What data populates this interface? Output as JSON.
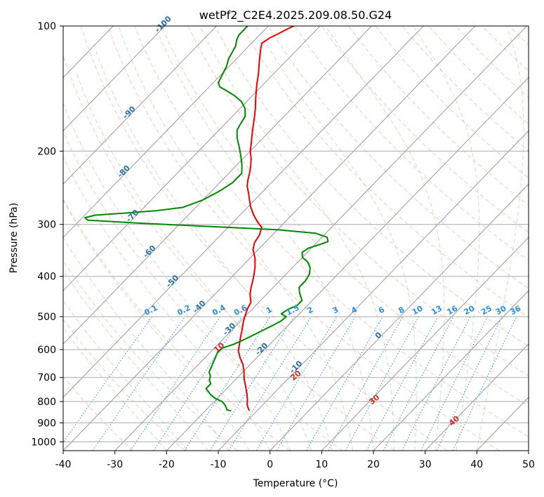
{
  "chart_data": {
    "type": "line",
    "title": "wetPf2_C2E4.2025.209.08.50.G24",
    "xlabel": "Temperature (°C)",
    "ylabel": "Pressure (hPa)",
    "xlim": [
      -40,
      50
    ],
    "ylim": [
      1050,
      100
    ],
    "y_scale": "log",
    "x_ticks": [
      "-40",
      "-30",
      "-20",
      "-10",
      "0",
      "10",
      "20",
      "30",
      "40",
      "50"
    ],
    "y_ticks": [
      "100",
      "200",
      "300",
      "400",
      "500",
      "600",
      "700",
      "800",
      "900",
      "1000"
    ],
    "grid": true,
    "series": [
      {
        "name": "",
        "color": "#ee0000",
        "points": [
          [
            -11.5,
            842
          ],
          [
            -13.0,
            815
          ],
          [
            -14.0,
            790
          ],
          [
            -15.2,
            765
          ],
          [
            -16.8,
            735
          ],
          [
            -18.5,
            705
          ],
          [
            -20.0,
            675
          ],
          [
            -21.5,
            650
          ],
          [
            -23.2,
            628
          ],
          [
            -24.8,
            605
          ],
          [
            -26.0,
            580
          ],
          [
            -27.0,
            560
          ],
          [
            -28.2,
            535
          ],
          [
            -29.3,
            515
          ],
          [
            -30.0,
            500
          ],
          [
            -31.0,
            478
          ],
          [
            -31.5,
            462
          ],
          [
            -32.5,
            450
          ],
          [
            -33.3,
            440
          ],
          [
            -34.3,
            425
          ],
          [
            -35.2,
            410
          ],
          [
            -36.2,
            395
          ],
          [
            -37.5,
            378
          ],
          [
            -39.2,
            360
          ],
          [
            -41.0,
            345
          ],
          [
            -42.0,
            332
          ],
          [
            -42.5,
            318
          ],
          [
            -43.5,
            305
          ],
          [
            -45.5,
            295
          ],
          [
            -47.5,
            284
          ],
          [
            -49.5,
            272
          ],
          [
            -51.0,
            262
          ],
          [
            -52.5,
            252
          ],
          [
            -54.0,
            243
          ],
          [
            -55.0,
            235
          ],
          [
            -56.0,
            226
          ],
          [
            -57.0,
            218
          ],
          [
            -58.5,
            208
          ],
          [
            -60.0,
            200
          ],
          [
            -61.2,
            192
          ],
          [
            -62.5,
            184
          ],
          [
            -64.0,
            175
          ],
          [
            -65.5,
            166
          ],
          [
            -67.0,
            158
          ],
          [
            -68.7,
            150
          ],
          [
            -70.2,
            143
          ],
          [
            -71.5,
            137
          ],
          [
            -73.0,
            130
          ],
          [
            -74.5,
            124
          ],
          [
            -76.0,
            118
          ],
          [
            -77.3,
            113
          ],
          [
            -78.0,
            110
          ],
          [
            -77.5,
            107
          ],
          [
            -76.5,
            104
          ],
          [
            -75.5,
            101
          ],
          [
            -75.0,
            100
          ]
        ]
      },
      {
        "name": "",
        "color": "#008800",
        "points": [
          [
            -15.0,
            842
          ],
          [
            -16.0,
            838
          ],
          [
            -16.5,
            828
          ],
          [
            -17.3,
            815
          ],
          [
            -18.5,
            800
          ],
          [
            -20.5,
            785
          ],
          [
            -22.0,
            770
          ],
          [
            -23.0,
            757
          ],
          [
            -24.0,
            745
          ],
          [
            -24.0,
            725
          ],
          [
            -25.0,
            710
          ],
          [
            -25.5,
            695
          ],
          [
            -26.5,
            680
          ],
          [
            -27.0,
            662
          ],
          [
            -27.5,
            645
          ],
          [
            -28.0,
            628
          ],
          [
            -28.5,
            612
          ],
          [
            -28.5,
            595
          ],
          [
            -27.0,
            583
          ],
          [
            -26.0,
            570
          ],
          [
            -25.0,
            555
          ],
          [
            -24.0,
            540
          ],
          [
            -23.0,
            525
          ],
          [
            -22.2,
            512
          ],
          [
            -22.0,
            500
          ],
          [
            -23.5,
            492
          ],
          [
            -23.0,
            480
          ],
          [
            -22.0,
            470
          ],
          [
            -22.0,
            457
          ],
          [
            -23.0,
            447
          ],
          [
            -24.0,
            437
          ],
          [
            -25.0,
            425
          ],
          [
            -25.0,
            410
          ],
          [
            -25.5,
            395
          ],
          [
            -26.5,
            382
          ],
          [
            -28.0,
            370
          ],
          [
            -30.0,
            360
          ],
          [
            -31.0,
            350
          ],
          [
            -30.5,
            342
          ],
          [
            -29.0,
            335
          ],
          [
            -28.0,
            330
          ],
          [
            -29.0,
            322
          ],
          [
            -32.0,
            315
          ],
          [
            -40.0,
            309
          ],
          [
            -55.0,
            303
          ],
          [
            -68.0,
            298
          ],
          [
            -78.5,
            293
          ],
          [
            -79.5,
            289
          ],
          [
            -78.0,
            285
          ],
          [
            -73.0,
            282
          ],
          [
            -67.0,
            278
          ],
          [
            -62.5,
            273
          ],
          [
            -60.0,
            262
          ],
          [
            -58.5,
            250
          ],
          [
            -57.5,
            238
          ],
          [
            -57.5,
            226
          ],
          [
            -59.0,
            216
          ],
          [
            -61.0,
            205
          ],
          [
            -63.0,
            195
          ],
          [
            -65.0,
            186
          ],
          [
            -66.5,
            178
          ],
          [
            -67.0,
            172
          ],
          [
            -67.5,
            165
          ],
          [
            -69.0,
            158
          ],
          [
            -71.0,
            152
          ],
          [
            -73.5,
            147
          ],
          [
            -76.0,
            143
          ],
          [
            -78.0,
            140
          ],
          [
            -79.0,
            137
          ],
          [
            -79.5,
            133
          ],
          [
            -80.0,
            129
          ],
          [
            -80.5,
            125
          ],
          [
            -81.5,
            120
          ],
          [
            -82.0,
            116
          ],
          [
            -82.5,
            112
          ],
          [
            -83.5,
            108
          ],
          [
            -84.0,
            105
          ],
          [
            -84.0,
            102
          ],
          [
            -84.0,
            100
          ]
        ]
      }
    ],
    "mixing_ratio_labels": [
      "0.1",
      "0.2",
      "0.4",
      "0.6",
      "1",
      "1.5",
      "2",
      "3",
      "4",
      "6",
      "8",
      "10",
      "13",
      "16",
      "20",
      "25",
      "30",
      "36"
    ],
    "isotherm_labels": [
      "-100",
      "-90",
      "-80",
      "-70",
      "-60",
      "-50",
      "-40",
      "-30",
      "-20",
      "-10",
      "0"
    ],
    "dry_adiabat_labels": [
      "10",
      "20",
      "30",
      "40"
    ]
  }
}
